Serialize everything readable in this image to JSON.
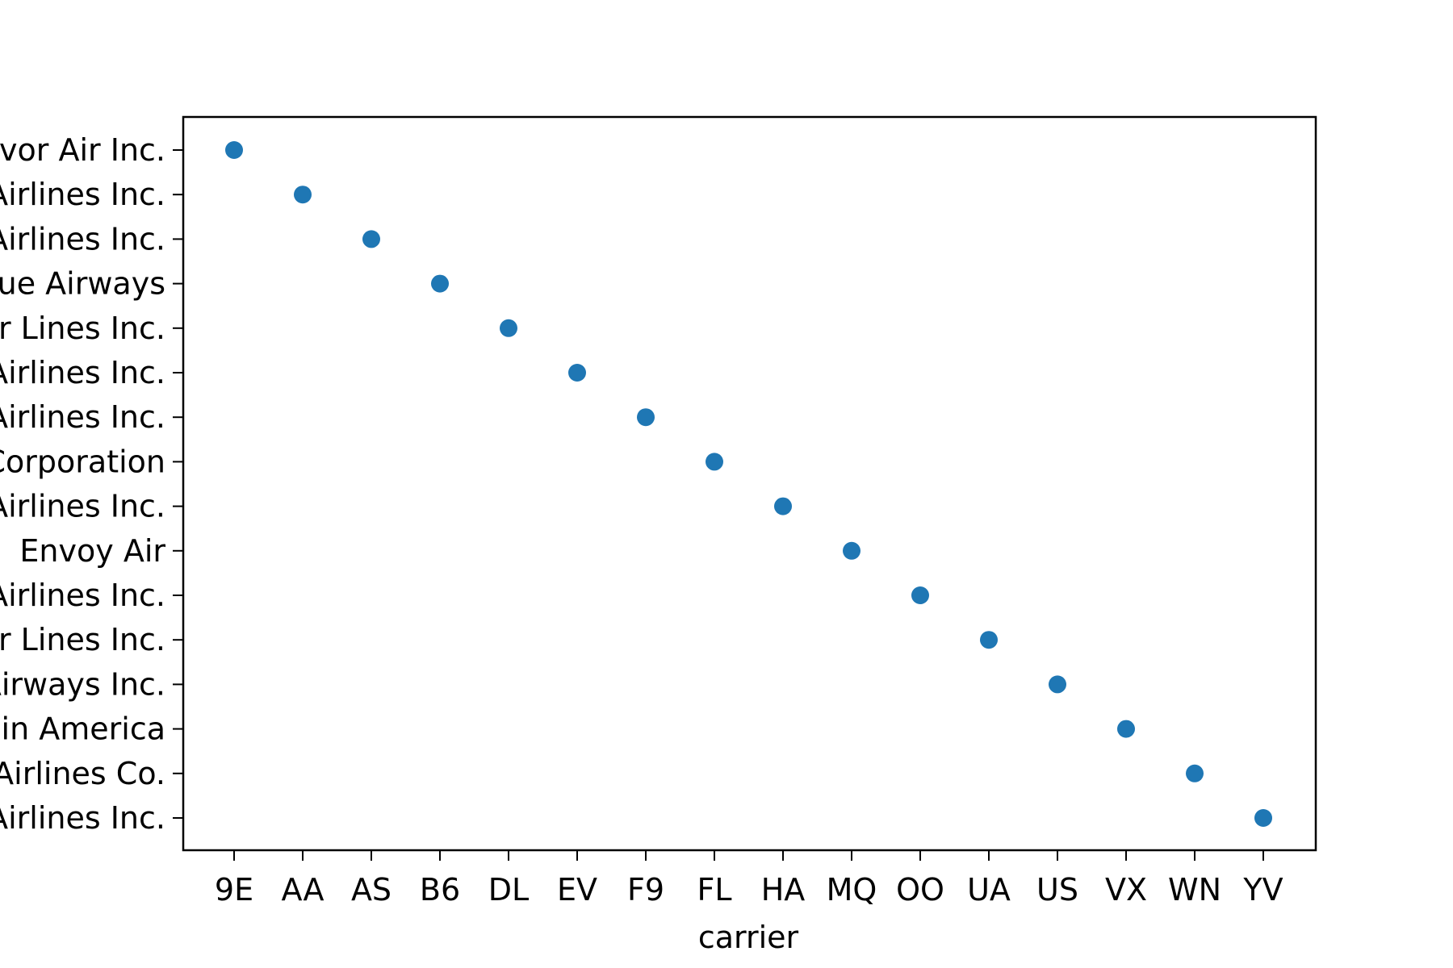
{
  "chart_data": {
    "type": "scatter",
    "title": "",
    "xlabel": "carrier",
    "ylabel": "",
    "grid": false,
    "x": [
      "9E",
      "AA",
      "AS",
      "B6",
      "DL",
      "EV",
      "F9",
      "FL",
      "HA",
      "MQ",
      "OO",
      "UA",
      "US",
      "VX",
      "WN",
      "YV"
    ],
    "y": [
      "Endeavor Air Inc.",
      "American Airlines Inc.",
      "Alaska Airlines Inc.",
      "JetBlue Airways",
      "Delta Air Lines Inc.",
      "ExpressJet Airlines Inc.",
      "Frontier Airlines Inc.",
      "AirTran Airways Corporation",
      "Hawaiian Airlines Inc.",
      "Envoy Air",
      "SkyWest Airlines Inc.",
      "United Air Lines Inc.",
      "US Airways Inc.",
      "Virgin America",
      "Southwest Airlines Co.",
      "Mesa Airlines Inc."
    ],
    "marker_color": "#1f77b4"
  }
}
